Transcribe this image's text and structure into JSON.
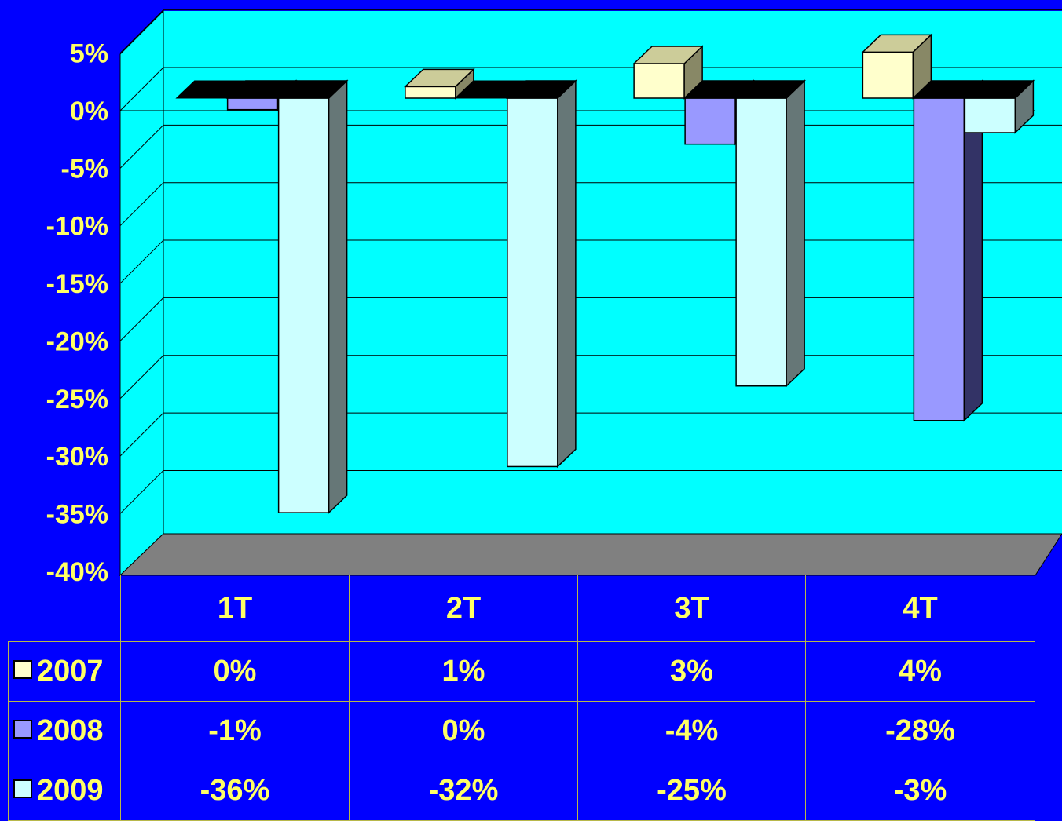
{
  "colors": {
    "background": "#0000ff",
    "wall": "#00ffff",
    "floor": "#808080",
    "text": "#ffff66",
    "gridline": "#000000"
  },
  "chart_data": {
    "type": "bar",
    "title": "",
    "categories": [
      "1T",
      "2T",
      "3T",
      "4T"
    ],
    "series": [
      {
        "name": "2007",
        "values": [
          0,
          1,
          3,
          4
        ],
        "labels": [
          "0%",
          "1%",
          "3%",
          "4%"
        ],
        "color": "#ffffcc",
        "side": "#888866",
        "top": "#cccc99"
      },
      {
        "name": "2008",
        "values": [
          -1,
          0,
          -4,
          -28
        ],
        "labels": [
          "-1%",
          "0%",
          "-4%",
          "-28%"
        ],
        "color": "#9999ff",
        "side": "#333366",
        "top": "#6666aa"
      },
      {
        "name": "2009",
        "values": [
          -36,
          -32,
          -25,
          -3
        ],
        "labels": [
          "-36%",
          "-32%",
          "-25%",
          "-3%"
        ],
        "color": "#ccffff",
        "side": "#667777",
        "top": "#99cccc"
      }
    ],
    "yticks": [
      "5%",
      "0%",
      "-5%",
      "-10%",
      "-15%",
      "-20%",
      "-25%",
      "-30%",
      "-35%",
      "-40%"
    ],
    "ylim": [
      -40,
      5
    ],
    "grid": true,
    "legend": "data-table"
  }
}
